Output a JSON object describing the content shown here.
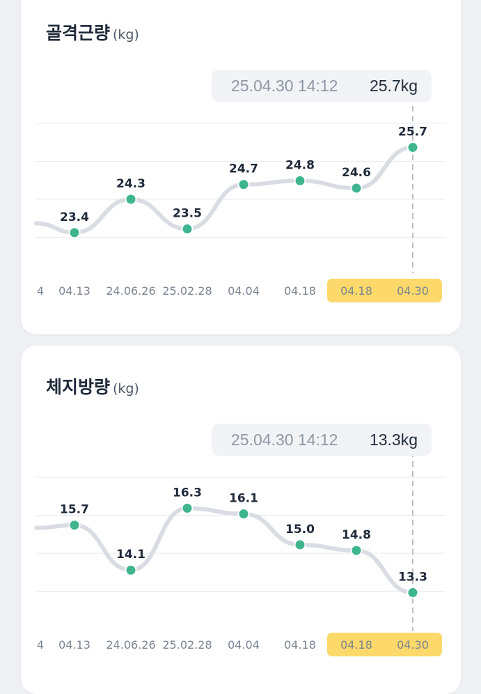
{
  "chart_data": [
    {
      "type": "line",
      "title": "골격근량",
      "unit": "(kg)",
      "tooltip": {
        "timestamp": "25.04.30 14:12",
        "value": "25.7kg"
      },
      "categories": [
        "04.13",
        "24.06.26",
        "25.02.28",
        "04.04",
        "04.18",
        "04.18",
        "04.30"
      ],
      "left_clipped_label": "4",
      "values": [
        23.4,
        24.3,
        23.5,
        24.7,
        24.8,
        24.6,
        25.7
      ],
      "value_labels": [
        "23.4",
        "24.3",
        "23.5",
        "24.7",
        "24.8",
        "24.6",
        "25.7"
      ],
      "left_edge_value": 23.65,
      "ylim": [
        22.25,
        26.35
      ],
      "grid": true,
      "highlighted_categories": [
        5,
        6
      ],
      "selected_index": 6,
      "colors": {
        "line": "#d9dde3",
        "point": "#3fb58f",
        "highlight": "#fcd96a",
        "guide": "#b9bec6"
      }
    },
    {
      "type": "line",
      "title": "체지방량",
      "unit": "(kg)",
      "tooltip": {
        "timestamp": "25.04.30 14:12",
        "value": "13.3kg"
      },
      "categories": [
        "04.13",
        "24.06.26",
        "25.02.28",
        "04.04",
        "04.18",
        "04.18",
        "04.30"
      ],
      "left_clipped_label": "4",
      "values": [
        15.7,
        14.1,
        16.3,
        16.1,
        15.0,
        14.8,
        13.3
      ],
      "value_labels": [
        "15.7",
        "14.1",
        "16.3",
        "16.1",
        "15.0",
        "14.8",
        "13.3"
      ],
      "left_edge_value": 15.6,
      "ylim": [
        12.0,
        17.4
      ],
      "grid": true,
      "highlighted_categories": [
        5,
        6
      ],
      "selected_index": 6,
      "colors": {
        "line": "#d9dde3",
        "point": "#3fb58f",
        "highlight": "#fcd96a",
        "guide": "#b9bec6"
      }
    }
  ]
}
